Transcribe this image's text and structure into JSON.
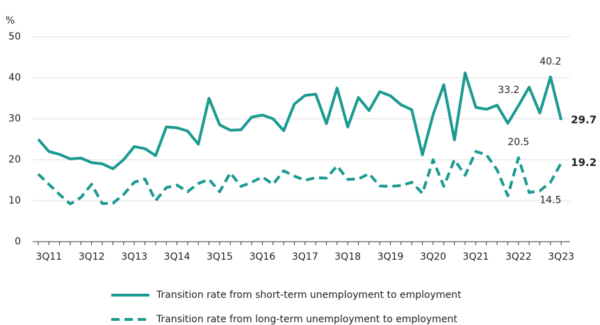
{
  "chart_data": {
    "type": "line",
    "y_label": "%",
    "categories": [
      null,
      "3Q11",
      null,
      null,
      null,
      "3Q12",
      null,
      null,
      null,
      "3Q13",
      null,
      null,
      null,
      "3Q14",
      null,
      null,
      null,
      "3Q15",
      null,
      null,
      null,
      "3Q16",
      null,
      null,
      null,
      "3Q17",
      null,
      null,
      null,
      "3Q18",
      null,
      null,
      null,
      "3Q19",
      null,
      null,
      null,
      "3Q20",
      null,
      null,
      null,
      "3Q21",
      null,
      null,
      null,
      "3Q22",
      null,
      null,
      null,
      "3Q23"
    ],
    "ylim": [
      0,
      50
    ],
    "yticks": [
      0,
      10,
      20,
      30,
      40,
      50
    ],
    "grid": true,
    "legend": "bottom",
    "series": [
      {
        "name": "Transition rate from short-term unemployment to employment",
        "color": "#1b9a92",
        "dash": "solid",
        "labeled_points": [
          45,
          48,
          49
        ],
        "values": [
          25,
          22,
          21.3,
          20.2,
          20.4,
          19.3,
          19,
          17.8,
          20,
          23.2,
          22.7,
          21,
          28,
          27.8,
          27,
          23.8,
          35,
          28.5,
          27.2,
          27.3,
          30.4,
          30.9,
          30,
          27.1,
          33.6,
          35.7,
          36,
          28.8,
          37.5,
          28,
          35.2,
          32,
          36.6,
          35.6,
          33.4,
          32.2,
          21.2,
          31,
          38.3,
          24.8,
          41.2,
          32.8,
          32.3,
          33.3,
          28.9,
          33.2,
          37.7,
          31.4,
          40.2,
          29.7
        ]
      },
      {
        "name": "Transition rate from long-term unemployment to employment",
        "color": "#1b9a92",
        "dash": "dashed",
        "labeled_points": [
          45,
          48,
          49
        ],
        "values": [
          16.5,
          14,
          11.5,
          9.2,
          10.8,
          14,
          9.3,
          9.4,
          11.5,
          14.5,
          15.3,
          10,
          13.2,
          13.8,
          12.2,
          14.2,
          15.2,
          12.2,
          16.8,
          13.5,
          14.5,
          15.8,
          14,
          17.3,
          16,
          15,
          15.6,
          15.5,
          18.5,
          15.2,
          15.3,
          16.6,
          13.6,
          13.5,
          13.7,
          14.5,
          11.8,
          20,
          13.5,
          20,
          16.2,
          22,
          21.2,
          17.5,
          11.2,
          20.5,
          12,
          12.4,
          14.5,
          19.2
        ]
      }
    ]
  }
}
